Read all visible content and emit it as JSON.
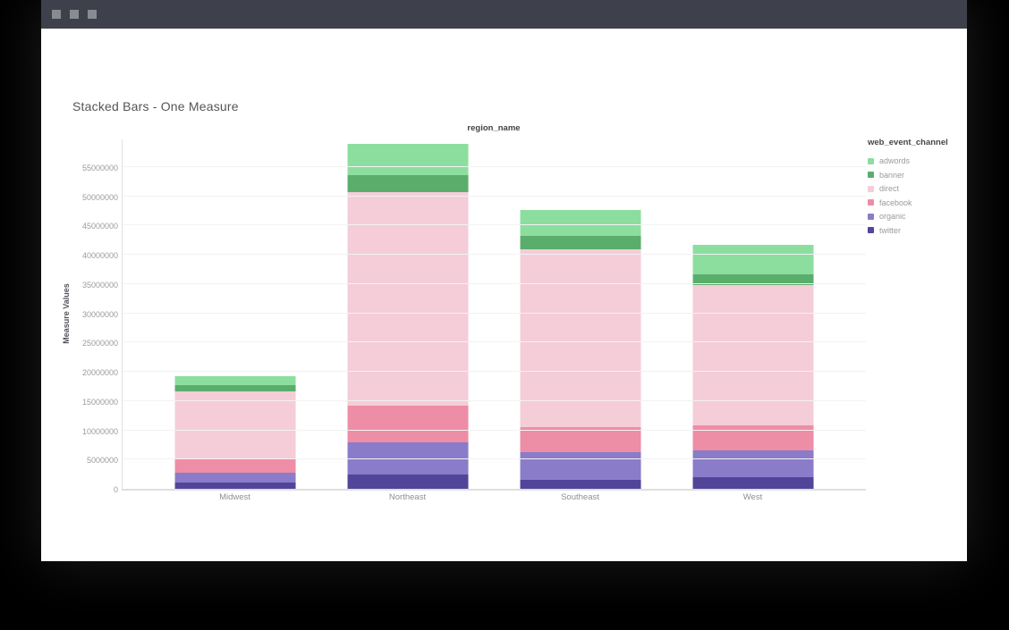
{
  "window": {
    "titlebar": {
      "control_count": 3
    }
  },
  "chart_data": {
    "type": "bar",
    "stacked": true,
    "title": "Stacked Bars - One Measure",
    "x_axis_title": "region_name",
    "y_axis_title": "Measure Values",
    "legend_title": "web_event_channel",
    "legend_position": "right",
    "grid": true,
    "categories": [
      "Midwest",
      "Northeast",
      "Southeast",
      "West"
    ],
    "series": [
      {
        "name": "adwords",
        "color": "#8CDE9E",
        "values": [
          1600000,
          5300000,
          4300000,
          5000000
        ]
      },
      {
        "name": "banner",
        "color": "#5BAD6C",
        "values": [
          1000000,
          3000000,
          2300000,
          1800000
        ]
      },
      {
        "name": "direct",
        "color": "#F4CDD8",
        "values": [
          11700000,
          36500000,
          30400000,
          24100000
        ]
      },
      {
        "name": "facebook",
        "color": "#EE8DA6",
        "values": [
          2200000,
          6200000,
          4300000,
          4200000
        ]
      },
      {
        "name": "organic",
        "color": "#8A7CC9",
        "values": [
          1800000,
          5500000,
          4800000,
          4600000
        ]
      },
      {
        "name": "twitter",
        "color": "#514599",
        "values": [
          1000000,
          2500000,
          1500000,
          2000000
        ]
      }
    ],
    "totals": [
      19300000,
      59000000,
      47600000,
      41700000
    ],
    "y_ticks": [
      0,
      5000000,
      10000000,
      15000000,
      20000000,
      25000000,
      30000000,
      35000000,
      40000000,
      45000000,
      50000000,
      55000000
    ],
    "ylim": [
      0,
      60000000
    ],
    "colors": {
      "titlebar_bg": "#3E414B",
      "window_bg": "#FFFFFF",
      "axis_line": "#E1E1E1",
      "gridline": "#F2F2F2",
      "tick_text": "#9B9B9B",
      "title_text": "#55555A"
    }
  }
}
